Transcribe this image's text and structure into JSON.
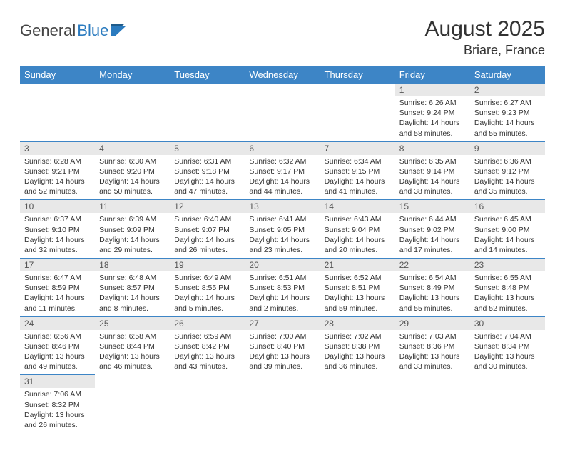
{
  "logo": {
    "part1": "General",
    "part2": "Blue"
  },
  "title": "August 2025",
  "location": "Briare, France",
  "colors": {
    "header_bg": "#3d85c6",
    "header_text": "#ffffff",
    "daynum_bg": "#e8e8e8",
    "border": "#3d85c6",
    "logo_blue": "#2b7bbf"
  },
  "weekdays": [
    "Sunday",
    "Monday",
    "Tuesday",
    "Wednesday",
    "Thursday",
    "Friday",
    "Saturday"
  ],
  "weeks": [
    [
      null,
      null,
      null,
      null,
      null,
      {
        "n": "1",
        "sr": "Sunrise: 6:26 AM",
        "ss": "Sunset: 9:24 PM",
        "dl1": "Daylight: 14 hours",
        "dl2": "and 58 minutes."
      },
      {
        "n": "2",
        "sr": "Sunrise: 6:27 AM",
        "ss": "Sunset: 9:23 PM",
        "dl1": "Daylight: 14 hours",
        "dl2": "and 55 minutes."
      }
    ],
    [
      {
        "n": "3",
        "sr": "Sunrise: 6:28 AM",
        "ss": "Sunset: 9:21 PM",
        "dl1": "Daylight: 14 hours",
        "dl2": "and 52 minutes."
      },
      {
        "n": "4",
        "sr": "Sunrise: 6:30 AM",
        "ss": "Sunset: 9:20 PM",
        "dl1": "Daylight: 14 hours",
        "dl2": "and 50 minutes."
      },
      {
        "n": "5",
        "sr": "Sunrise: 6:31 AM",
        "ss": "Sunset: 9:18 PM",
        "dl1": "Daylight: 14 hours",
        "dl2": "and 47 minutes."
      },
      {
        "n": "6",
        "sr": "Sunrise: 6:32 AM",
        "ss": "Sunset: 9:17 PM",
        "dl1": "Daylight: 14 hours",
        "dl2": "and 44 minutes."
      },
      {
        "n": "7",
        "sr": "Sunrise: 6:34 AM",
        "ss": "Sunset: 9:15 PM",
        "dl1": "Daylight: 14 hours",
        "dl2": "and 41 minutes."
      },
      {
        "n": "8",
        "sr": "Sunrise: 6:35 AM",
        "ss": "Sunset: 9:14 PM",
        "dl1": "Daylight: 14 hours",
        "dl2": "and 38 minutes."
      },
      {
        "n": "9",
        "sr": "Sunrise: 6:36 AM",
        "ss": "Sunset: 9:12 PM",
        "dl1": "Daylight: 14 hours",
        "dl2": "and 35 minutes."
      }
    ],
    [
      {
        "n": "10",
        "sr": "Sunrise: 6:37 AM",
        "ss": "Sunset: 9:10 PM",
        "dl1": "Daylight: 14 hours",
        "dl2": "and 32 minutes."
      },
      {
        "n": "11",
        "sr": "Sunrise: 6:39 AM",
        "ss": "Sunset: 9:09 PM",
        "dl1": "Daylight: 14 hours",
        "dl2": "and 29 minutes."
      },
      {
        "n": "12",
        "sr": "Sunrise: 6:40 AM",
        "ss": "Sunset: 9:07 PM",
        "dl1": "Daylight: 14 hours",
        "dl2": "and 26 minutes."
      },
      {
        "n": "13",
        "sr": "Sunrise: 6:41 AM",
        "ss": "Sunset: 9:05 PM",
        "dl1": "Daylight: 14 hours",
        "dl2": "and 23 minutes."
      },
      {
        "n": "14",
        "sr": "Sunrise: 6:43 AM",
        "ss": "Sunset: 9:04 PM",
        "dl1": "Daylight: 14 hours",
        "dl2": "and 20 minutes."
      },
      {
        "n": "15",
        "sr": "Sunrise: 6:44 AM",
        "ss": "Sunset: 9:02 PM",
        "dl1": "Daylight: 14 hours",
        "dl2": "and 17 minutes."
      },
      {
        "n": "16",
        "sr": "Sunrise: 6:45 AM",
        "ss": "Sunset: 9:00 PM",
        "dl1": "Daylight: 14 hours",
        "dl2": "and 14 minutes."
      }
    ],
    [
      {
        "n": "17",
        "sr": "Sunrise: 6:47 AM",
        "ss": "Sunset: 8:59 PM",
        "dl1": "Daylight: 14 hours",
        "dl2": "and 11 minutes."
      },
      {
        "n": "18",
        "sr": "Sunrise: 6:48 AM",
        "ss": "Sunset: 8:57 PM",
        "dl1": "Daylight: 14 hours",
        "dl2": "and 8 minutes."
      },
      {
        "n": "19",
        "sr": "Sunrise: 6:49 AM",
        "ss": "Sunset: 8:55 PM",
        "dl1": "Daylight: 14 hours",
        "dl2": "and 5 minutes."
      },
      {
        "n": "20",
        "sr": "Sunrise: 6:51 AM",
        "ss": "Sunset: 8:53 PM",
        "dl1": "Daylight: 14 hours",
        "dl2": "and 2 minutes."
      },
      {
        "n": "21",
        "sr": "Sunrise: 6:52 AM",
        "ss": "Sunset: 8:51 PM",
        "dl1": "Daylight: 13 hours",
        "dl2": "and 59 minutes."
      },
      {
        "n": "22",
        "sr": "Sunrise: 6:54 AM",
        "ss": "Sunset: 8:49 PM",
        "dl1": "Daylight: 13 hours",
        "dl2": "and 55 minutes."
      },
      {
        "n": "23",
        "sr": "Sunrise: 6:55 AM",
        "ss": "Sunset: 8:48 PM",
        "dl1": "Daylight: 13 hours",
        "dl2": "and 52 minutes."
      }
    ],
    [
      {
        "n": "24",
        "sr": "Sunrise: 6:56 AM",
        "ss": "Sunset: 8:46 PM",
        "dl1": "Daylight: 13 hours",
        "dl2": "and 49 minutes."
      },
      {
        "n": "25",
        "sr": "Sunrise: 6:58 AM",
        "ss": "Sunset: 8:44 PM",
        "dl1": "Daylight: 13 hours",
        "dl2": "and 46 minutes."
      },
      {
        "n": "26",
        "sr": "Sunrise: 6:59 AM",
        "ss": "Sunset: 8:42 PM",
        "dl1": "Daylight: 13 hours",
        "dl2": "and 43 minutes."
      },
      {
        "n": "27",
        "sr": "Sunrise: 7:00 AM",
        "ss": "Sunset: 8:40 PM",
        "dl1": "Daylight: 13 hours",
        "dl2": "and 39 minutes."
      },
      {
        "n": "28",
        "sr": "Sunrise: 7:02 AM",
        "ss": "Sunset: 8:38 PM",
        "dl1": "Daylight: 13 hours",
        "dl2": "and 36 minutes."
      },
      {
        "n": "29",
        "sr": "Sunrise: 7:03 AM",
        "ss": "Sunset: 8:36 PM",
        "dl1": "Daylight: 13 hours",
        "dl2": "and 33 minutes."
      },
      {
        "n": "30",
        "sr": "Sunrise: 7:04 AM",
        "ss": "Sunset: 8:34 PM",
        "dl1": "Daylight: 13 hours",
        "dl2": "and 30 minutes."
      }
    ],
    [
      {
        "n": "31",
        "sr": "Sunrise: 7:06 AM",
        "ss": "Sunset: 8:32 PM",
        "dl1": "Daylight: 13 hours",
        "dl2": "and 26 minutes."
      },
      null,
      null,
      null,
      null,
      null,
      null
    ]
  ]
}
